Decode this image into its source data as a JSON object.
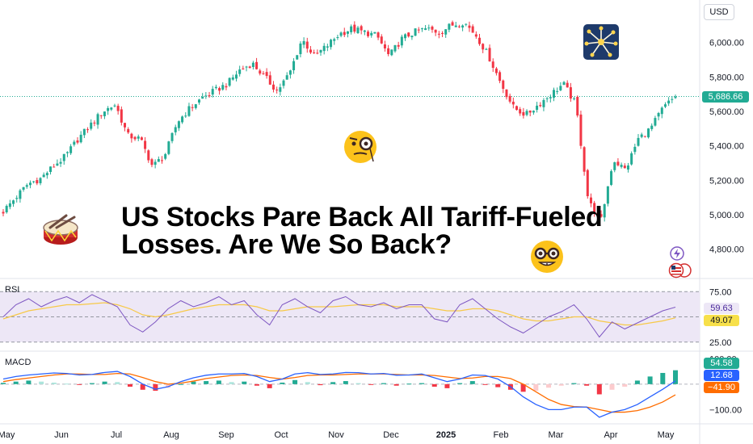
{
  "currency_button": "USD",
  "headline": {
    "line1": "US Stocks Pare Back All Tariff-Fueled",
    "line2": "Losses. Are We So Back?"
  },
  "colors": {
    "up": "#22ab94",
    "down": "#f23645",
    "rsi_line": "#7e57c2",
    "rsi_ma": "#f7c948",
    "rsi_band": "#ede7f6",
    "macd_line": "#2962ff",
    "signal_line": "#ff6d00",
    "price_line": "#22ab94"
  },
  "icons": [
    "drum-icon",
    "monocle-face-icon",
    "nerd-face-icon",
    "fireworks-icon",
    "lightning-icon",
    "us-flag-coins-icon"
  ],
  "chart_data": [
    {
      "type": "candlestick",
      "title": "",
      "y_axis": {
        "ticks": [
          "6,000.00",
          "5,800.00",
          "5,600.00",
          "5,400.00",
          "5,200.00",
          "5,000.00",
          "4,800.00"
        ],
        "ylim": [
          4700,
          6200
        ]
      },
      "x_axis": {
        "ticks": [
          "May",
          "Jun",
          "Jul",
          "Aug",
          "Sep",
          "Oct",
          "Nov",
          "Dec",
          "2025",
          "Feb",
          "Mar",
          "Apr",
          "May"
        ]
      },
      "last_price": "5,686.66",
      "close_series": [
        5020,
        5100,
        5180,
        5210,
        5280,
        5340,
        5440,
        5520,
        5600,
        5640,
        5460,
        5440,
        5280,
        5350,
        5540,
        5620,
        5680,
        5720,
        5760,
        5840,
        5880,
        5800,
        5720,
        5820,
        6020,
        5920,
        5980,
        6050,
        6080,
        6060,
        6040,
        5920,
        6020,
        6060,
        6080,
        6060,
        6100,
        6120,
        6040,
        5920,
        5760,
        5620,
        5580,
        5640,
        5700,
        5760,
        5640,
        5080,
        4960,
        5320,
        5260,
        5440,
        5500,
        5620,
        5686.66
      ]
    },
    {
      "type": "line",
      "title": "RSI",
      "y_axis": {
        "ticks": [
          "75.00",
          "25.00"
        ],
        "ylim": [
          20,
          80
        ]
      },
      "series": [
        {
          "values": [
            50,
            62,
            68,
            60,
            66,
            70,
            64,
            72,
            66,
            60,
            42,
            35,
            45,
            58,
            66,
            60,
            64,
            70,
            62,
            66,
            52,
            42,
            62,
            68,
            60,
            54,
            66,
            70,
            62,
            60,
            64,
            58,
            62,
            62,
            48,
            45,
            62,
            68,
            58,
            48,
            40,
            34,
            42,
            50,
            55,
            62,
            48,
            30,
            45,
            38,
            44,
            50,
            56,
            59.63
          ]
        },
        {
          "values": [
            48,
            52,
            56,
            58,
            60,
            62,
            62,
            63,
            64,
            62,
            58,
            52,
            50,
            52,
            55,
            58,
            60,
            62,
            62,
            62,
            60,
            56,
            56,
            58,
            60,
            60,
            60,
            61,
            62,
            62,
            62,
            60,
            60,
            60,
            58,
            56,
            56,
            58,
            58,
            56,
            52,
            48,
            46,
            46,
            48,
            50,
            50,
            46,
            44,
            42,
            42,
            44,
            46,
            49.07
          ]
        }
      ],
      "value_labels": [
        "59.63",
        "49.07"
      ]
    },
    {
      "type": "bar+line",
      "title": "MACD",
      "y_axis": {
        "ticks": [
          "100.00",
          "−100.00"
        ],
        "ylim": [
          -140,
          120
        ]
      },
      "histogram": [
        5,
        10,
        14,
        10,
        6,
        2,
        -2,
        4,
        10,
        8,
        -10,
        -22,
        -26,
        -14,
        0,
        10,
        12,
        14,
        8,
        10,
        -6,
        -16,
        6,
        16,
        8,
        -4,
        8,
        12,
        4,
        -2,
        4,
        -6,
        2,
        4,
        -10,
        -16,
        4,
        12,
        -2,
        -12,
        -22,
        -30,
        -26,
        -14,
        -6,
        4,
        -6,
        -40,
        -22,
        -10,
        14,
        30,
        44,
        54.58
      ],
      "macd": [
        20,
        30,
        36,
        40,
        44,
        42,
        36,
        38,
        46,
        50,
        30,
        0,
        -20,
        -10,
        10,
        25,
        35,
        40,
        40,
        42,
        30,
        10,
        20,
        40,
        45,
        38,
        40,
        46,
        45,
        40,
        42,
        35,
        36,
        40,
        25,
        10,
        20,
        36,
        34,
        20,
        -10,
        -50,
        -80,
        -100,
        -100,
        -90,
        -90,
        -130,
        -110,
        -100,
        -80,
        -50,
        -20,
        12.68
      ],
      "signal": [
        10,
        18,
        24,
        30,
        36,
        40,
        40,
        38,
        38,
        42,
        40,
        26,
        10,
        0,
        4,
        12,
        22,
        28,
        34,
        36,
        34,
        26,
        20,
        26,
        34,
        36,
        36,
        38,
        40,
        40,
        40,
        38,
        36,
        36,
        34,
        28,
        22,
        24,
        30,
        30,
        22,
        0,
        -30,
        -60,
        -80,
        -88,
        -90,
        -100,
        -110,
        -110,
        -104,
        -90,
        -70,
        -41.9
      ],
      "value_labels": [
        "54.58",
        "12.68",
        "−41.90"
      ]
    }
  ]
}
